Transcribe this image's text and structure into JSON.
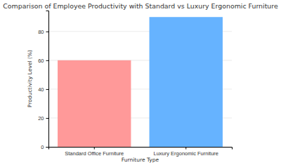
{
  "chart_data": {
    "type": "bar",
    "title": "Comparison of Employee Productivity with Standard vs Luxury Ergonomic Furniture",
    "x_label": "Furniture Type",
    "y_label": "Productivity Level (%)",
    "categories": [
      "Standard Office Furniture",
      "Luxury Ergonomic Furniture"
    ],
    "values": [
      60,
      90
    ],
    "colors": [
      "#ff9999",
      "#66b3ff"
    ],
    "ylim": [
      0,
      94.5
    ],
    "yticks": [
      0,
      20,
      40,
      60,
      80
    ],
    "grid": true
  }
}
